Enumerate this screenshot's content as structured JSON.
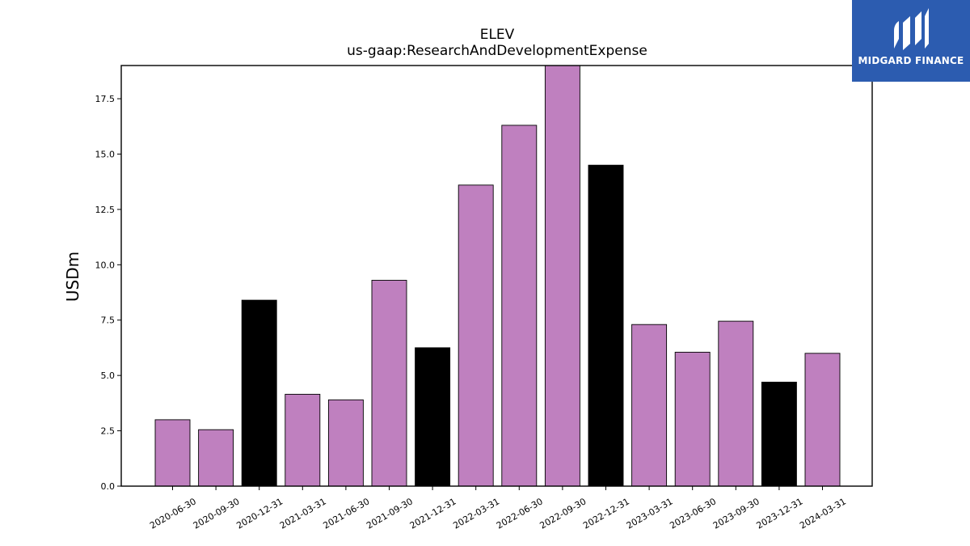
{
  "chart_data": {
    "type": "bar",
    "title": "ELEV",
    "subtitle": "us-gaap:ResearchAndDevelopmentExpense",
    "xlabel": "",
    "ylabel": "USDm",
    "ylim": [
      0,
      19.0
    ],
    "yticks": [
      "0.0",
      "2.5",
      "5.0",
      "7.5",
      "10.0",
      "12.5",
      "15.0",
      "17.5"
    ],
    "categories": [
      "2020-06-30",
      "2020-09-30",
      "2020-12-31",
      "2021-03-31",
      "2021-06-30",
      "2021-09-30",
      "2021-12-31",
      "2022-03-31",
      "2022-06-30",
      "2022-09-30",
      "2022-12-31",
      "2023-03-31",
      "2023-06-30",
      "2023-09-30",
      "2023-12-31",
      "2024-03-31"
    ],
    "values": [
      3.0,
      2.55,
      8.4,
      4.15,
      3.9,
      9.3,
      6.25,
      13.6,
      16.3,
      19.0,
      14.5,
      7.3,
      6.05,
      7.45,
      4.7,
      6.0
    ],
    "bar_colors": [
      "#bf80bf",
      "#bf80bf",
      "#000000",
      "#bf80bf",
      "#bf80bf",
      "#bf80bf",
      "#000000",
      "#bf80bf",
      "#bf80bf",
      "#bf80bf",
      "#000000",
      "#bf80bf",
      "#bf80bf",
      "#bf80bf",
      "#000000",
      "#bf80bf"
    ],
    "grid": false,
    "legend": "none"
  },
  "logo": {
    "text": "MIDGARD FINANCE",
    "background": "#2c5cb0",
    "icon": "midgard-logo-icon"
  }
}
